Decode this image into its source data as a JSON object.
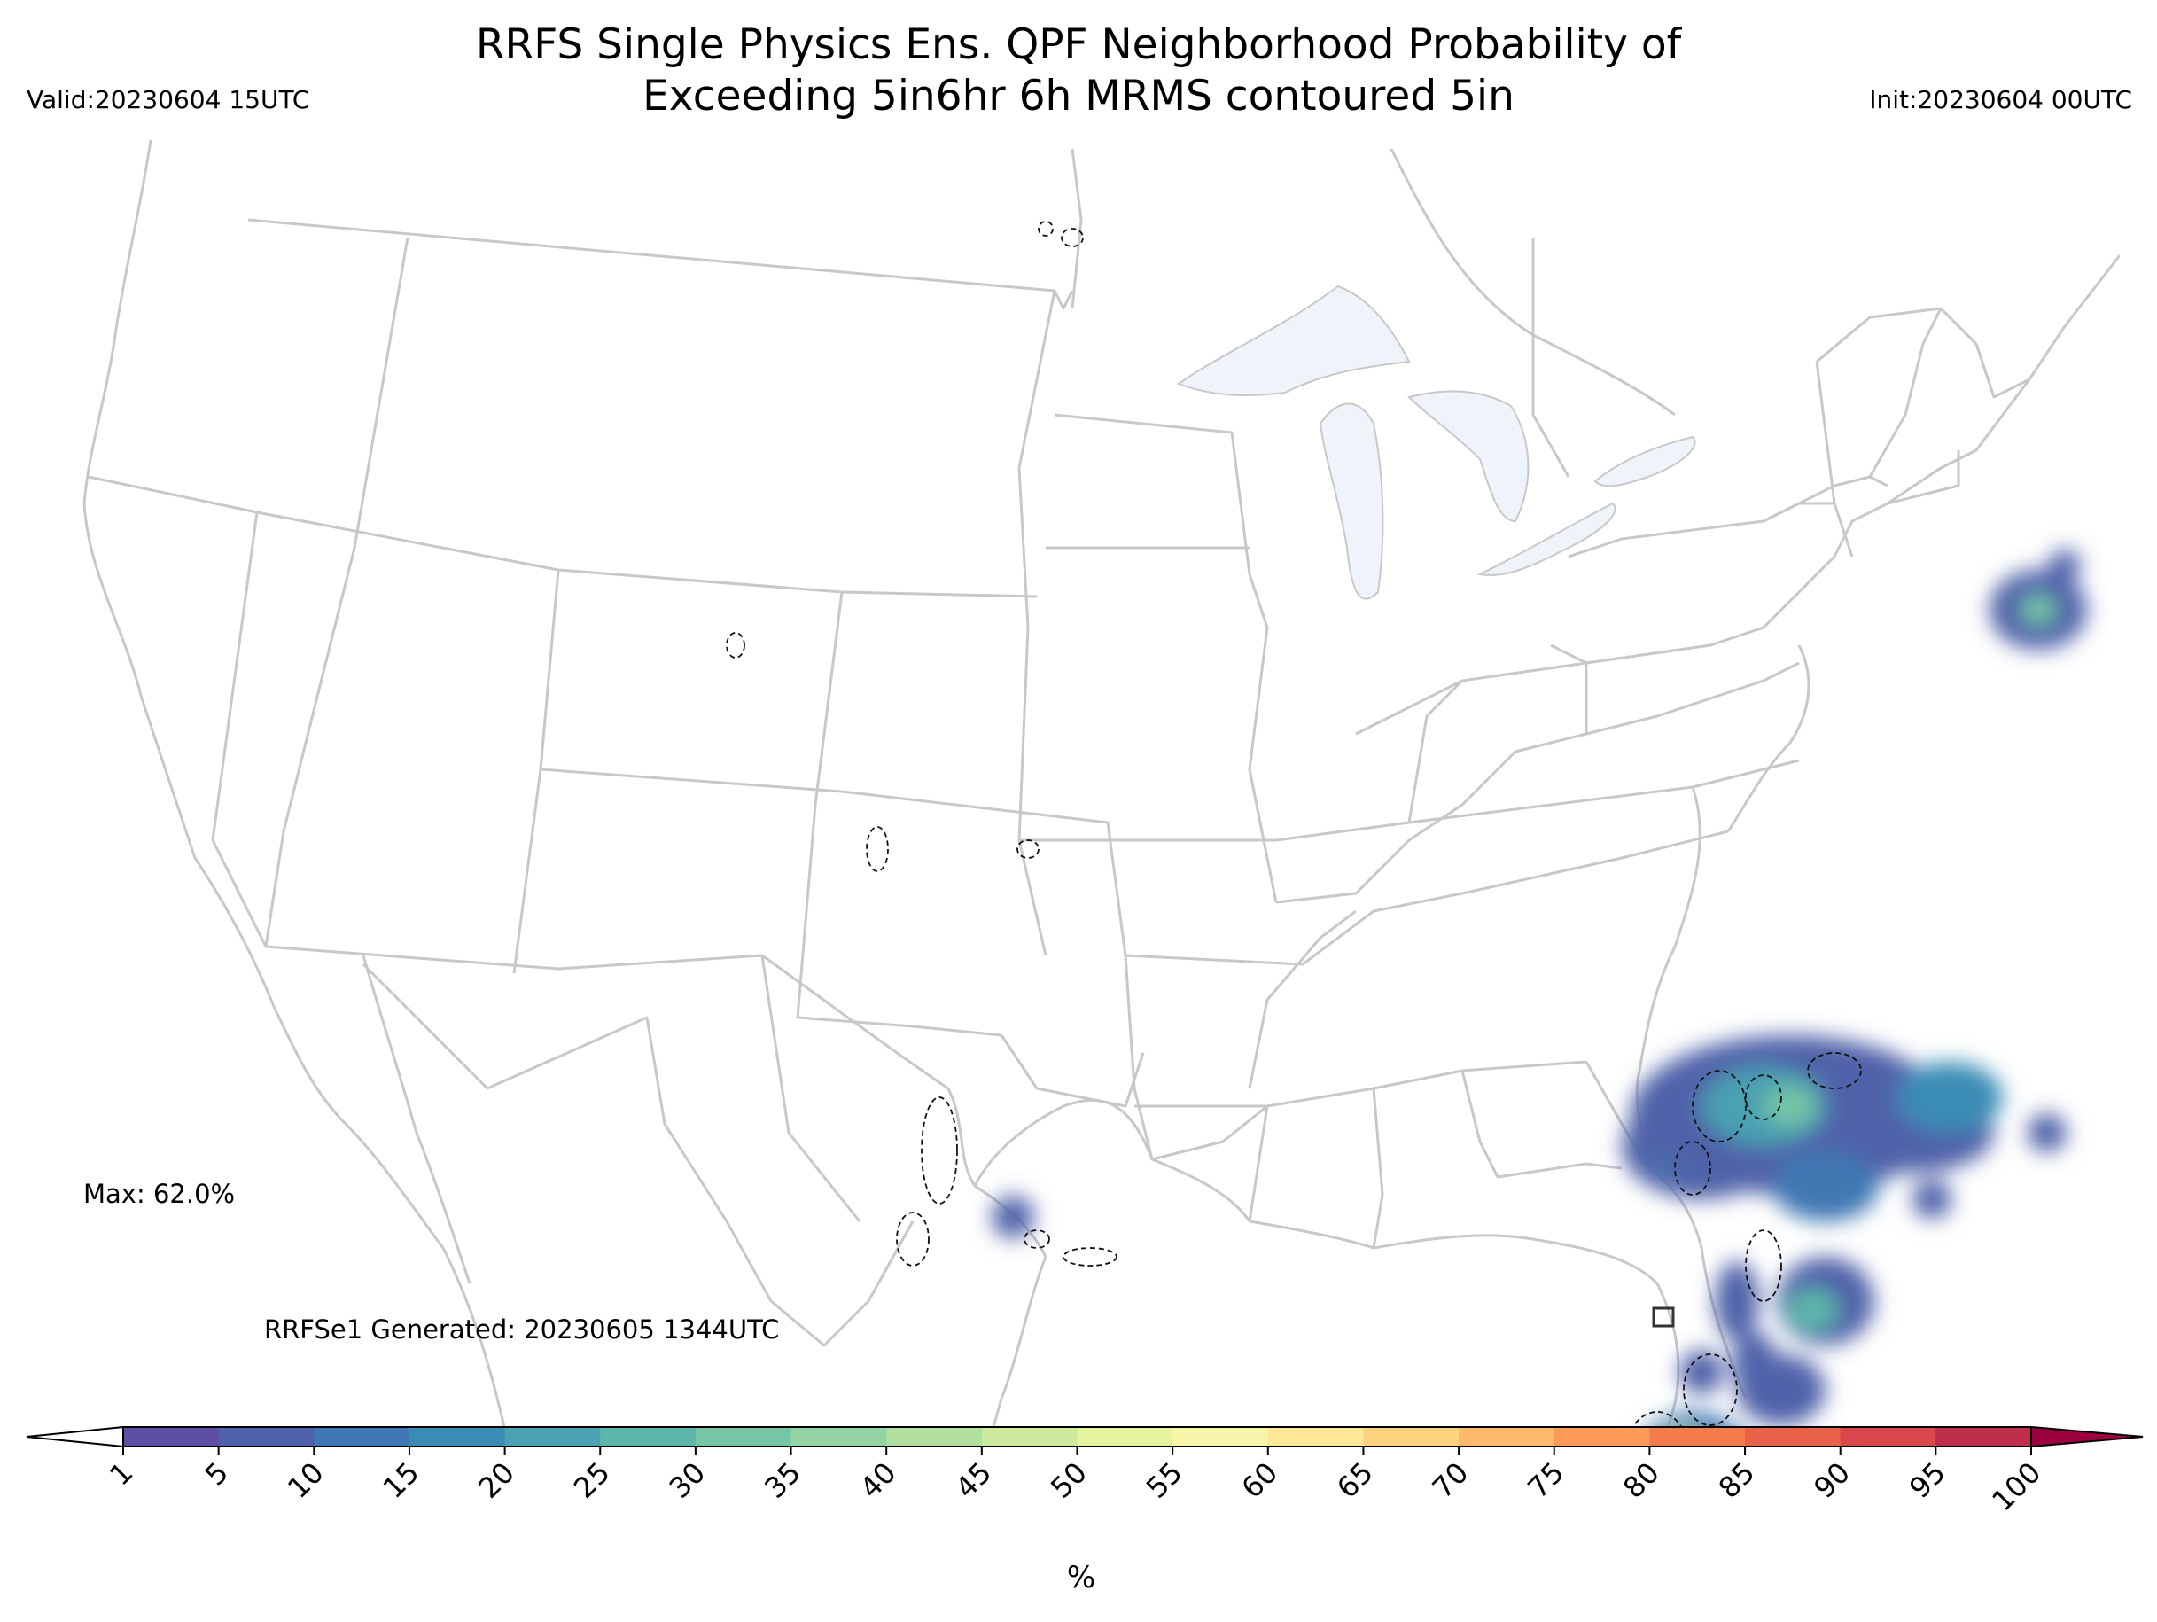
{
  "header": {
    "title_line1": "RRFS Single Physics Ens. QPF Neighborhood Probability of",
    "title_line2": "Exceeding 5in6hr 6h MRMS contoured 5in",
    "valid": "Valid:20230604 15UTC",
    "init": "Init:20230604 00UTC"
  },
  "annotations": {
    "max": "Max: 62.0%",
    "generated": "RRFSe1 Generated: 20230605 1344UTC"
  },
  "colorbar": {
    "ticks": [
      "1",
      "5",
      "10",
      "15",
      "20",
      "25",
      "30",
      "35",
      "40",
      "45",
      "50",
      "55",
      "60",
      "65",
      "70",
      "75",
      "80",
      "85",
      "90",
      "95",
      "100"
    ],
    "colors": [
      "#5e4fa2",
      "#4f62a9",
      "#3f78b2",
      "#3b8cb5",
      "#4aa1b1",
      "#5db6aa",
      "#76c6a5",
      "#93d3a4",
      "#b0df9f",
      "#cde99d",
      "#e6f49e",
      "#f7f5a9",
      "#fee796",
      "#fdd27f",
      "#fdb96a",
      "#fb9a59",
      "#f67b4c",
      "#e96149",
      "#d9474d",
      "#c02e4b",
      "#9e0142"
    ],
    "unit": "%"
  },
  "map": {
    "land_color": "#ffffff",
    "border_color": "#c8c8c8",
    "lake_color": "#eff3fa"
  }
}
